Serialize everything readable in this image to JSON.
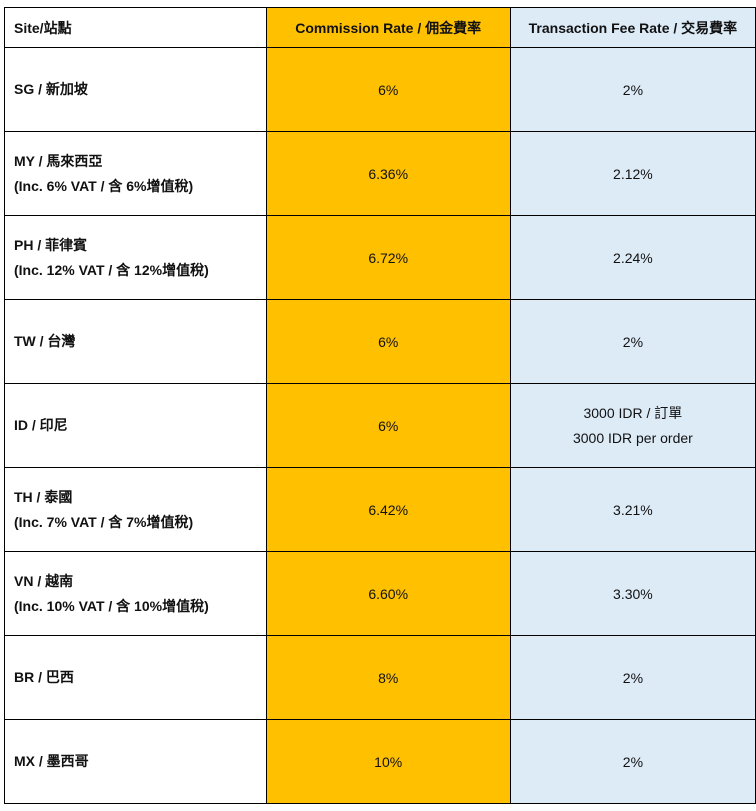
{
  "table": {
    "headers": {
      "site": "Site/站點",
      "commission": "Commission Rate / 佣金費率",
      "transaction": "Transaction Fee Rate / 交易費率"
    },
    "colors": {
      "commission_bg": "#FFC000",
      "transaction_bg": "#DDEBF7",
      "site_bg": "#FFFFFF",
      "border": "#000000"
    },
    "rows": [
      {
        "site": "SG / 新加坡",
        "site_note": "",
        "commission": "6%",
        "transaction": "2%",
        "transaction_note": ""
      },
      {
        "site": "MY / 馬來西亞",
        "site_note": "(Inc. 6% VAT / 含 6%增值稅)",
        "commission": "6.36%",
        "transaction": "2.12%",
        "transaction_note": ""
      },
      {
        "site": "PH / 菲律賓",
        "site_note": "(Inc. 12% VAT / 含 12%增值稅)",
        "commission": "6.72%",
        "transaction": "2.24%",
        "transaction_note": ""
      },
      {
        "site": "TW / 台灣",
        "site_note": "",
        "commission": "6%",
        "transaction": "2%",
        "transaction_note": ""
      },
      {
        "site": "ID / 印尼",
        "site_note": "",
        "commission": "6%",
        "transaction": "3000 IDR / 訂單",
        "transaction_note": "3000 IDR per order"
      },
      {
        "site": "TH / 泰國",
        "site_note": "(Inc. 7% VAT / 含 7%增值稅)",
        "commission": "6.42%",
        "transaction": "3.21%",
        "transaction_note": ""
      },
      {
        "site": "VN / 越南",
        "site_note": "(Inc. 10% VAT / 含 10%增值稅)",
        "commission": "6.60%",
        "transaction": "3.30%",
        "transaction_note": ""
      },
      {
        "site": "BR / 巴西",
        "site_note": "",
        "commission": "8%",
        "transaction": "2%",
        "transaction_note": ""
      },
      {
        "site": "MX / 墨西哥",
        "site_note": "",
        "commission": "10%",
        "transaction": "2%",
        "transaction_note": ""
      }
    ]
  }
}
